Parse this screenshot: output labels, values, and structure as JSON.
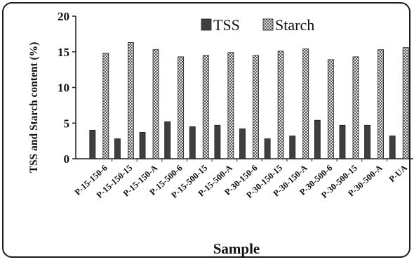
{
  "chart_data": {
    "type": "bar",
    "title": "",
    "xlabel": "Sample",
    "ylabel": "TSS and Starch content (%)",
    "ylim": [
      0,
      20
    ],
    "yticks": [
      0,
      5,
      10,
      15,
      20
    ],
    "grid": false,
    "legend_position": "top-center",
    "categories": [
      "P-15-150-6",
      "P-15-150-15",
      "P-15-150-A",
      "P-15-500-6",
      "P-15-500-15",
      "P-15-500-A",
      "P-30-150-6",
      "P-30-150-15",
      "P-30-150-A",
      "P-30-500-6",
      "P-30-500-15",
      "P-30-500-A",
      "P-UA"
    ],
    "series": [
      {
        "name": "TSS",
        "color": "#3f3f3f",
        "pattern": "solid",
        "values": [
          4.0,
          2.8,
          3.7,
          5.2,
          4.5,
          4.7,
          4.2,
          2.8,
          3.2,
          5.4,
          4.7,
          4.7,
          3.2
        ]
      },
      {
        "name": "Starch",
        "color": "#9a9a9a",
        "pattern": "checkered",
        "values": [
          14.8,
          16.3,
          15.3,
          14.3,
          14.5,
          14.9,
          14.5,
          15.1,
          15.4,
          13.9,
          14.3,
          15.3,
          15.6
        ]
      }
    ]
  }
}
